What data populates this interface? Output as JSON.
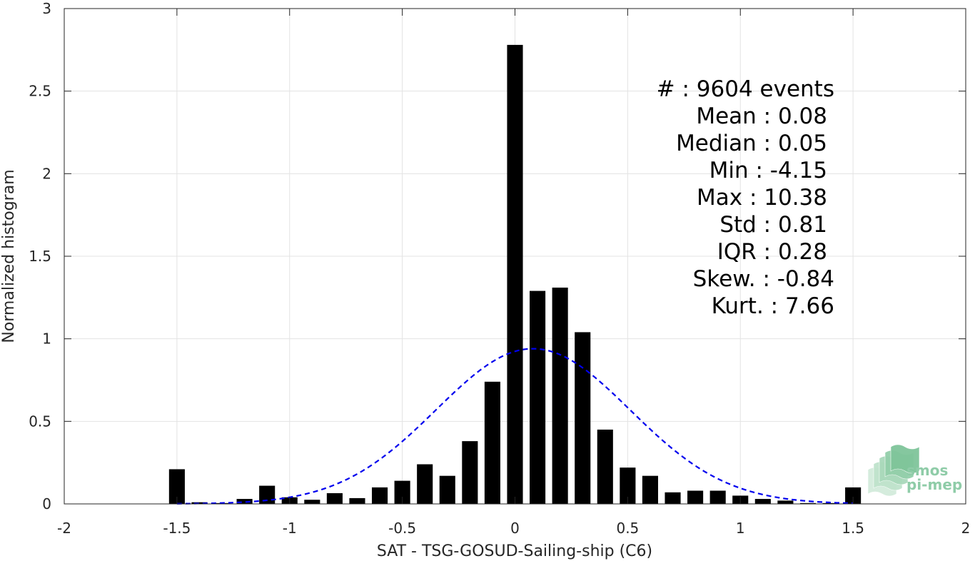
{
  "chart_data": {
    "type": "bar",
    "xlabel": "SAT - TSG-GOSUD-Sailing-ship (C6)",
    "ylabel": "Normalized histogram",
    "xlim": [
      -2,
      2
    ],
    "ylim": [
      0,
      3
    ],
    "xticks": [
      -2,
      -1.5,
      -1,
      -0.5,
      0,
      0.5,
      1,
      1.5,
      2
    ],
    "xtick_labels": [
      "-2",
      "-1.5",
      "-1",
      "-0.5",
      "0",
      "0.5",
      "1",
      "1.5",
      "2"
    ],
    "yticks": [
      0,
      0.5,
      1,
      1.5,
      2,
      2.5,
      3
    ],
    "ytick_labels": [
      "0",
      "0.5",
      "1",
      "1.5",
      "2",
      "2.5",
      "3"
    ],
    "grid": true,
    "bar_width": 0.07,
    "bars": {
      "x": [
        -1.5,
        -1.4,
        -1.3,
        -1.2,
        -1.1,
        -1.0,
        -0.9,
        -0.8,
        -0.7,
        -0.6,
        -0.5,
        -0.4,
        -0.3,
        -0.2,
        -0.1,
        0.0,
        0.1,
        0.2,
        0.3,
        0.4,
        0.5,
        0.6,
        0.7,
        0.8,
        0.9,
        1.0,
        1.1,
        1.2,
        1.3,
        1.4,
        1.5
      ],
      "values": [
        0.21,
        0.01,
        0.005,
        0.03,
        0.11,
        0.04,
        0.025,
        0.065,
        0.035,
        0.1,
        0.14,
        0.24,
        0.17,
        0.38,
        0.74,
        2.78,
        1.29,
        1.31,
        1.04,
        0.45,
        0.22,
        0.17,
        0.07,
        0.08,
        0.08,
        0.05,
        0.03,
        0.02,
        0.005,
        0.005,
        0.1
      ],
      "color": "#000000"
    },
    "fit_curve": {
      "style": "dashed",
      "color": "#0000ee",
      "mean": 0.08,
      "std": 0.43,
      "peak": 0.94,
      "x_range": [
        -1.5,
        1.5
      ]
    },
    "annotations": [
      "#  : 9604 events",
      "Mean : 0.08",
      "Median : 0.05",
      "Min : -4.15",
      "Max : 10.38",
      "Std : 0.81",
      "IQR : 0.28",
      "Skew. : -0.84",
      "Kurt. : 7.66"
    ]
  },
  "logo": {
    "line1": "smos",
    "line2": "pi-mep",
    "color": "#8fcca8"
  }
}
